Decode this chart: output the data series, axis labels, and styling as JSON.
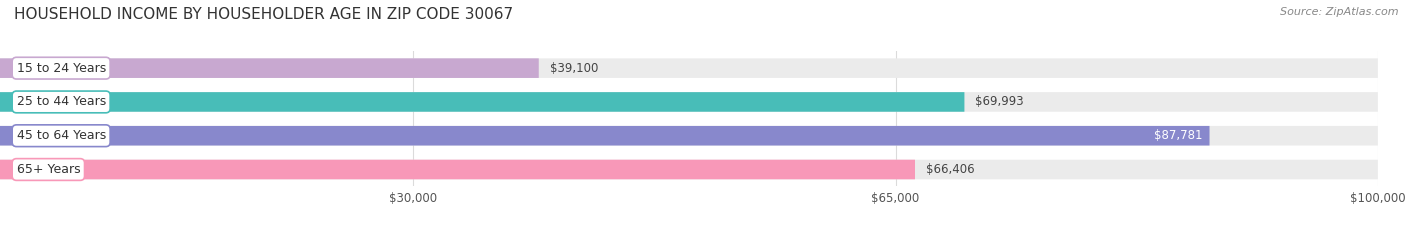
{
  "title": "HOUSEHOLD INCOME BY HOUSEHOLDER AGE IN ZIP CODE 30067",
  "source": "Source: ZipAtlas.com",
  "categories": [
    "15 to 24 Years",
    "25 to 44 Years",
    "45 to 64 Years",
    "65+ Years"
  ],
  "values": [
    39100,
    69993,
    87781,
    66406
  ],
  "bar_colors": [
    "#c8a8d0",
    "#48bdb8",
    "#8888cc",
    "#f898b8"
  ],
  "bar_bg_color": "#ebebeb",
  "value_inside": [
    false,
    false,
    true,
    false
  ],
  "xmin": 0,
  "xmax": 100000,
  "xticks": [
    30000,
    65000,
    100000
  ],
  "xtick_labels": [
    "$30,000",
    "$65,000",
    "$100,000"
  ],
  "figsize": [
    14.06,
    2.33
  ],
  "dpi": 100
}
